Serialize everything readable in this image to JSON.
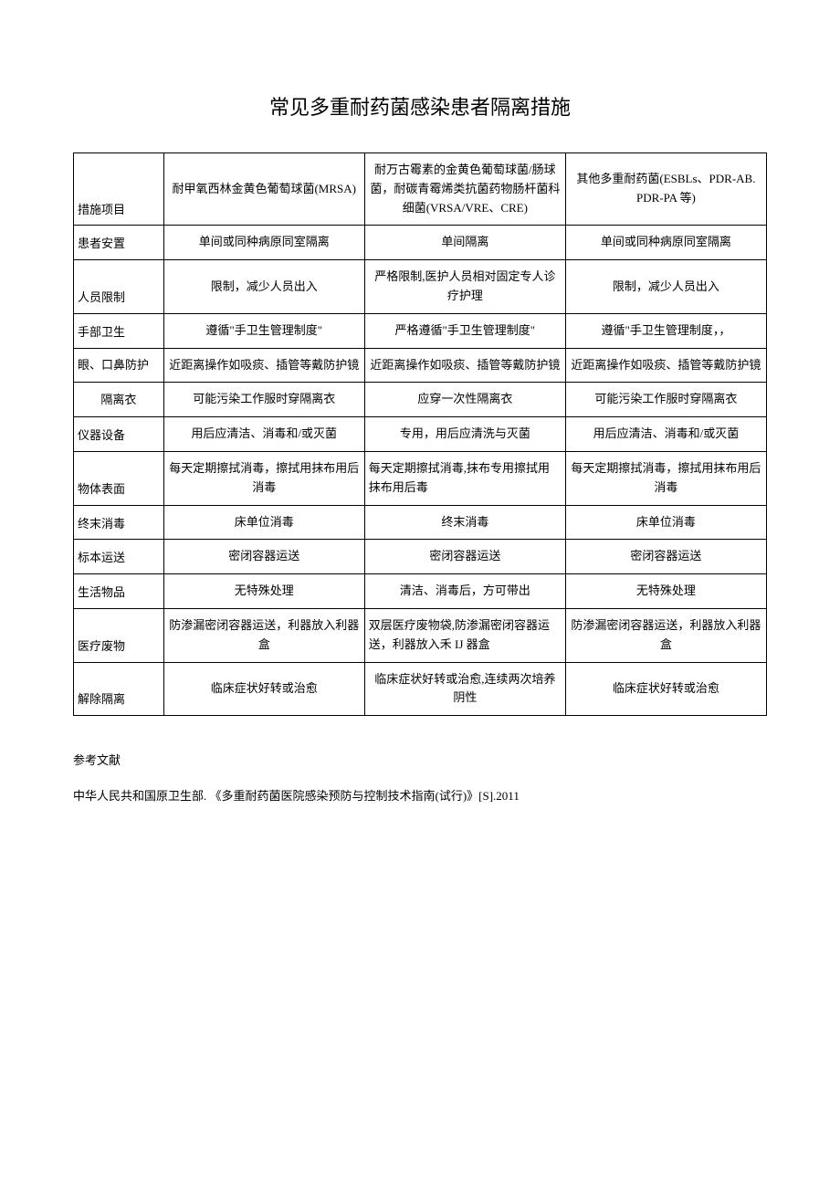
{
  "title": "常见多重耐药菌感染患者隔离措施",
  "table": {
    "columns": [
      "措施项目",
      "耐甲氧西林金黄色葡萄球菌(MRSA)",
      "耐万古霉素的金黄色葡萄球菌/肠球菌，耐碳青霉烯类抗菌药物肠杆菌科细菌(VRSA/VRE、CRE)",
      "其他多重耐药菌(ESBLs、PDR-AB. PDR-PA 等)"
    ],
    "rows": [
      {
        "label": "患者安置",
        "c1": "单间或同种病原同室隔离",
        "c2": "单间隔离",
        "c3": "单间或同种病原同室隔离"
      },
      {
        "label": "人员限制",
        "c1": "限制，减少人员出入",
        "c2": "严格限制,医护人员相对固定专人诊疗护理",
        "c3": "限制，减少人员出入"
      },
      {
        "label": "手部卫生",
        "c1": "遵循\"手卫生管理制度\"",
        "c2": "严格遵循\"手卫生管理制度\"",
        "c3": "遵循\"手卫生管理制度，，"
      },
      {
        "label": "眼、口鼻防护",
        "c1": "近距离操作如吸痰、插管等戴防护镜",
        "c2": "近距离操作如吸痰、插管等戴防护镜",
        "c3": "近距离操作如吸痰、插管等戴防护镜"
      },
      {
        "label": "隔离衣",
        "c1": "可能污染工作服时穿隔离衣",
        "c2": "应穿一次性隔离衣",
        "c3": "可能污染工作服时穿隔离衣"
      },
      {
        "label": "仪器设备",
        "c1": "用后应清洁、消毒和/或灭菌",
        "c2": "专用，用后应清洗与灭菌",
        "c3": "用后应清洁、消毒和/或灭菌"
      },
      {
        "label": "物体表面",
        "c1": "每天定期擦拭消毒，擦拭用抹布用后消毒",
        "c2": "每天定期擦拭消毒,抹布专用擦拭用抹布用后毒",
        "c3": "每天定期擦拭消毒，擦拭用抹布用后消毒"
      },
      {
        "label": "终末消毒",
        "c1": "床单位消毒",
        "c2": "终末消毒",
        "c3": "床单位消毒"
      },
      {
        "label": "标本运送",
        "c1": "密闭容器运送",
        "c2": "密闭容器运送",
        "c3": "密闭容器运送"
      },
      {
        "label": "生活物品",
        "c1": "无特殊处理",
        "c2": "清洁、消毒后，方可带出",
        "c3": "无特殊处理"
      },
      {
        "label": "医疗废物",
        "c1": "防渗漏密闭容器运送，利器放入利器盒",
        "c2": "双层医疗废物袋,防渗漏密闭容器运送，利器放入禾 IJ 器盒",
        "c3": "防渗漏密闭容器运送，利器放入利器盒"
      },
      {
        "label": "解除隔离",
        "c1": "临床症状好转或治愈",
        "c2": "临床症状好转或治愈,连续两次培养阴性",
        "c3": "临床症状好转或治愈"
      }
    ]
  },
  "references": {
    "heading": "参考文献",
    "item": "中华人民共和国原卫生部. 《多重耐药菌医院感染预防与控制技术指南(试行)》[S].2011"
  }
}
